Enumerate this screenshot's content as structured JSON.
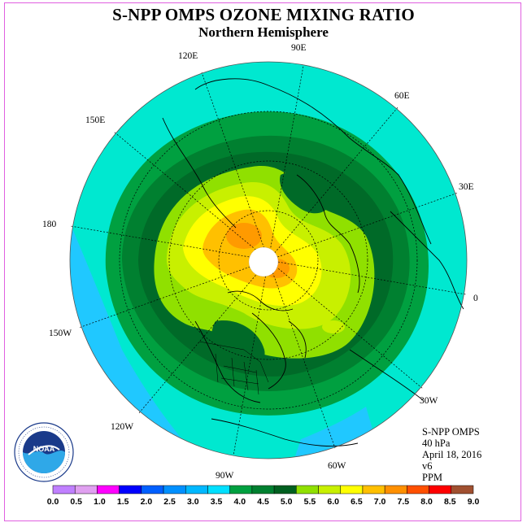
{
  "header": {
    "title": "S-NPP OMPS OZONE MIXING RATIO",
    "subtitle": "Northern Hemisphere"
  },
  "map": {
    "projection": "north polar stereographic",
    "longitude_labels": [
      {
        "text": "90E",
        "deg": 90
      },
      {
        "text": "60E",
        "deg": 60
      },
      {
        "text": "30E",
        "deg": 30
      },
      {
        "text": "0",
        "deg": 0
      },
      {
        "text": "30W",
        "deg": -30
      },
      {
        "text": "60W",
        "deg": -60
      },
      {
        "text": "90W",
        "deg": -90
      },
      {
        "text": "120W",
        "deg": -120
      },
      {
        "text": "150W",
        "deg": -150
      },
      {
        "text": "180",
        "deg": 180
      },
      {
        "text": "150E",
        "deg": 150
      },
      {
        "text": "120E",
        "deg": 120
      }
    ]
  },
  "info": {
    "instrument": "S-NPP OMPS",
    "level": "40 hPa",
    "date": "April 18, 2016",
    "version": "v6",
    "units": "PPM"
  },
  "logo": {
    "name": "NOAA",
    "ring_text": "NATIONAL OCEANIC AND ATMOSPHERIC ADMINISTRATION · U.S. DEPARTMENT OF COMMERCE"
  },
  "colorbar": {
    "labels": [
      "0.0",
      "0.5",
      "1.0",
      "1.5",
      "2.0",
      "2.5",
      "3.0",
      "3.5",
      "4.0",
      "4.5",
      "5.0",
      "5.5",
      "6.0",
      "6.5",
      "7.0",
      "7.5",
      "8.0",
      "8.5",
      "9.0"
    ],
    "colors": [
      "#c080ff",
      "#e0a0f0",
      "#ff00ff",
      "#0000ff",
      "#0060ff",
      "#0090ff",
      "#00b8ff",
      "#00e0ff",
      "#00a040",
      "#008030",
      "#006020",
      "#90e000",
      "#c8f000",
      "#ffff00",
      "#ffc000",
      "#ff9000",
      "#ff5000",
      "#ff0000",
      "#a05030"
    ]
  }
}
